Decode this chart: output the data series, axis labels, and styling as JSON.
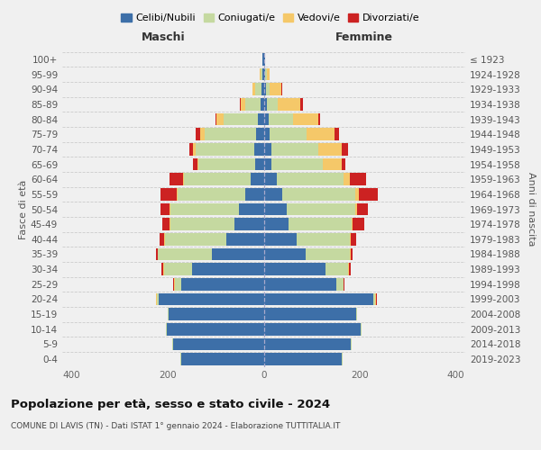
{
  "age_groups": [
    "0-4",
    "5-9",
    "10-14",
    "15-19",
    "20-24",
    "25-29",
    "30-34",
    "35-39",
    "40-44",
    "45-49",
    "50-54",
    "55-59",
    "60-64",
    "65-69",
    "70-74",
    "75-79",
    "80-84",
    "85-89",
    "90-94",
    "95-99",
    "100+"
  ],
  "birth_years": [
    "2019-2023",
    "2014-2018",
    "2009-2013",
    "2004-2008",
    "1999-2003",
    "1994-1998",
    "1989-1993",
    "1984-1988",
    "1979-1983",
    "1974-1978",
    "1969-1973",
    "1964-1968",
    "1959-1963",
    "1954-1958",
    "1949-1953",
    "1944-1948",
    "1939-1943",
    "1934-1938",
    "1929-1933",
    "1924-1928",
    "≤ 1923"
  ],
  "male_celibi": [
    172,
    188,
    202,
    198,
    218,
    172,
    150,
    108,
    78,
    62,
    52,
    38,
    28,
    18,
    20,
    16,
    12,
    6,
    4,
    3,
    2
  ],
  "male_coniugati": [
    2,
    2,
    2,
    2,
    5,
    14,
    58,
    112,
    128,
    132,
    142,
    142,
    138,
    118,
    122,
    108,
    72,
    33,
    14,
    4,
    1
  ],
  "male_vedovi": [
    0,
    0,
    0,
    0,
    1,
    1,
    1,
    1,
    1,
    2,
    2,
    2,
    2,
    2,
    5,
    8,
    14,
    8,
    5,
    2,
    0
  ],
  "male_divorziati": [
    0,
    0,
    0,
    0,
    1,
    2,
    4,
    4,
    10,
    16,
    20,
    33,
    28,
    10,
    8,
    10,
    2,
    2,
    1,
    0,
    0
  ],
  "fem_nubili": [
    162,
    182,
    202,
    192,
    228,
    152,
    128,
    88,
    68,
    52,
    48,
    38,
    28,
    16,
    16,
    12,
    10,
    6,
    4,
    3,
    2
  ],
  "fem_coniugate": [
    2,
    2,
    2,
    2,
    5,
    14,
    48,
    92,
    112,
    132,
    142,
    152,
    138,
    108,
    98,
    78,
    52,
    23,
    9,
    4,
    1
  ],
  "fem_vedove": [
    0,
    0,
    0,
    0,
    1,
    1,
    1,
    1,
    2,
    2,
    4,
    9,
    14,
    38,
    48,
    58,
    52,
    48,
    24,
    5,
    0
  ],
  "fem_divorziate": [
    0,
    0,
    0,
    0,
    1,
    2,
    4,
    4,
    10,
    23,
    23,
    38,
    33,
    9,
    14,
    8,
    4,
    4,
    2,
    1,
    0
  ],
  "color_celibi": "#3d6fa8",
  "color_coniugati": "#c5d9a0",
  "color_vedovi": "#f5c869",
  "color_divorziati": "#cc2222",
  "xlim": 420,
  "bg_color": "#f0f0f0",
  "title": "Popolazione per età, sesso e stato civile - 2024",
  "subtitle": "COMUNE DI LAVIS (TN) - Dati ISTAT 1° gennaio 2024 - Elaborazione TUTTITALIA.IT",
  "label_maschi": "Maschi",
  "label_femmine": "Femmine",
  "ylabel_left": "Fasce di età",
  "ylabel_right": "Anni di nascita",
  "legend_labels": [
    "Celibi/Nubili",
    "Coniugati/e",
    "Vedovi/e",
    "Divorziati/e"
  ]
}
